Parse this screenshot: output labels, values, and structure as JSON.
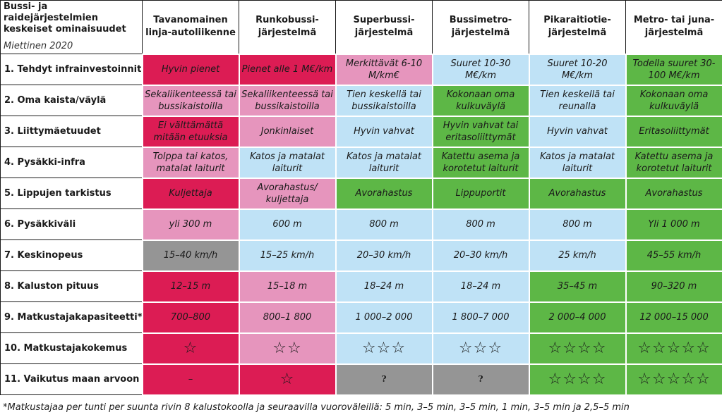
{
  "corner": {
    "title": "Bussi- ja raidejärjestelmien keskeiset ominaisuudet",
    "source": "Miettinen 2020"
  },
  "columns": [
    "Tavanomainen linja-autoliikenne",
    "Runkobussi-järjestelmä",
    "Superbussi-järjestelmä",
    "Bussimetro-järjestelmä",
    "Pikaraitiotie-järjestelmä",
    "Metro- tai juna-järjestelmä"
  ],
  "legend_colors": {
    "red": "#dc1c54",
    "pink": "#e695bd",
    "light_blue": "#bfe2f6",
    "green": "#5db746",
    "gray": "#959595"
  },
  "rows": [
    {
      "label": "1. Tehdyt infrainvestoinnit",
      "cells": [
        "Hyvin pienet",
        "Pienet alle 1 M€/km",
        "Merkittävät 6-10 M/km€",
        "Suuret 10-30 M€/km",
        "Suuret 10-20 M€/km",
        "Todella suuret 30-100 M€/km"
      ]
    },
    {
      "label": "2. Oma kaista/väylä",
      "cells": [
        "Sekaliikenteessä tai bussikaistoilla",
        "Sekaliikenteessä tai bussikaistoilla",
        "Tien keskellä tai bussikaistoilla",
        "Kokonaan oma kulkuväylä",
        "Tien keskellä tai reunalla",
        "Kokonaan oma kulkuväylä"
      ]
    },
    {
      "label": "3. Liittymäetuudet",
      "cells": [
        "Ei välttämättä mitään etuuksia",
        "Jonkinlaiset",
        "Hyvin vahvat",
        "Hyvin vahvat tai eritasoliittymät",
        "Hyvin vahvat",
        "Eritasoliittymät"
      ]
    },
    {
      "label": "4. Pysäkki-infra",
      "cells": [
        "Tolppa tai katos, matalat laiturit",
        "Katos ja matalat laiturit",
        "Katos ja matalat laiturit",
        "Katettu asema ja korotetut laiturit",
        "Katos ja matalat laiturit",
        "Katettu asema ja korotetut laiturit"
      ]
    },
    {
      "label": "5. Lippujen tarkistus",
      "cells": [
        "Kuljettaja",
        "Avorahastus/ kuljettaja",
        "Avorahastus",
        "Lippuportit",
        "Avorahastus",
        "Avorahastus"
      ]
    },
    {
      "label": "6. Pysäkkiväli",
      "cells": [
        "yli 300 m",
        "600 m",
        "800 m",
        "800 m",
        "800 m",
        "Yli 1 000 m"
      ]
    },
    {
      "label": "7. Keskinopeus",
      "cells": [
        "15–40 km/h",
        "15–25 km/h",
        "20–30 km/h",
        "20–30 km/h",
        "25 km/h",
        "45–55 km/h"
      ]
    },
    {
      "label": "8. Kaluston pituus",
      "cells": [
        "12–15 m",
        "15–18 m",
        "18–24 m",
        "18–24 m",
        "35–45 m",
        "90–320 m"
      ]
    },
    {
      "label": "9. Matkustajakapasiteetti*",
      "cells": [
        "700–800",
        "800–1 800",
        "1 000–2 000",
        "1 800–7 000",
        "2 000–4 000",
        "12 000–15 000"
      ]
    },
    {
      "label": "10. Matkustajakokemus",
      "stars": [
        1,
        2,
        3,
        3,
        4,
        5
      ]
    },
    {
      "label": "11. Vaikutus maan arvoon",
      "cells": [
        "–",
        "",
        "?",
        "?",
        "",
        ""
      ],
      "stars": [
        0,
        1,
        0,
        0,
        4,
        5
      ]
    }
  ],
  "footnote": "*Matkustajaa per tunti per suunta rivin 8 kalustokoolla ja seuraavilla vuoroväleillä: 5 min, 3–5 min, 3–5 min, 1 min, 3–5 min ja 2,5–5 min"
}
